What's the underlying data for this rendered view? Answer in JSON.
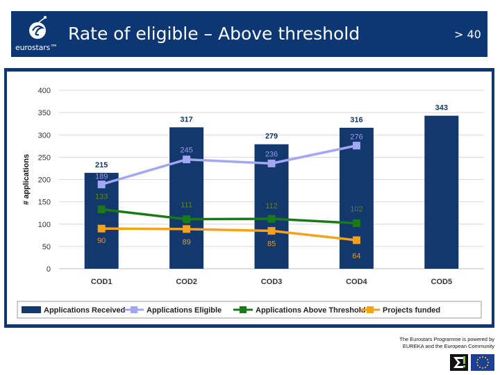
{
  "header": {
    "logo_text": "eurostars™",
    "title": "Rate of eligible – Above threshold",
    "threshold_label": "> 40",
    "colors": {
      "background": "#0c3773",
      "text": "#ffffff"
    }
  },
  "footer": {
    "line1": "The Eurostars Programme is powered by",
    "line2": "EUREKA and the European Community",
    "logos": [
      "eureka-sigma-icon",
      "eu-flag-icon"
    ]
  },
  "chart_data": {
    "type": "bar",
    "title": "",
    "xlabel": "",
    "ylabel": "# applications",
    "ylim": [
      0,
      400
    ],
    "yticks": [
      "0",
      "50",
      "100",
      "150",
      "200",
      "250",
      "300",
      "350",
      "400"
    ],
    "categories": [
      "COD1",
      "COD2",
      "COD3",
      "COD4",
      "COD5"
    ],
    "grid": true,
    "legend_position": "bottom",
    "series": [
      {
        "name": "Applications Received",
        "kind": "bar",
        "color": "#13386b",
        "label_color": "#13386b",
        "values": [
          215,
          317,
          279,
          316,
          343
        ],
        "labels": [
          "215",
          "317",
          "279",
          "316",
          "343"
        ]
      },
      {
        "name": "Applications Eligible",
        "kind": "line",
        "marker": "square",
        "color": "#a3a6f2",
        "label_color": "#9999ee",
        "values": [
          189,
          245,
          236,
          276,
          null
        ],
        "labels": [
          "189",
          "245",
          "236",
          "276",
          ""
        ]
      },
      {
        "name": "Applications Above Threshold",
        "kind": "line",
        "marker": "square",
        "color": "#1a7a1a",
        "label_color": "#5f8a00",
        "values": [
          133,
          111,
          112,
          102,
          null
        ],
        "labels": [
          "133",
          "111",
          "112",
          "102",
          ""
        ]
      },
      {
        "name": "Projects funded",
        "kind": "line",
        "marker": "square",
        "color": "#f5a21b",
        "label_color": "#f59a12",
        "values": [
          90,
          89,
          85,
          64,
          null
        ],
        "labels": [
          "90",
          "89",
          "85",
          "64",
          ""
        ]
      }
    ]
  }
}
